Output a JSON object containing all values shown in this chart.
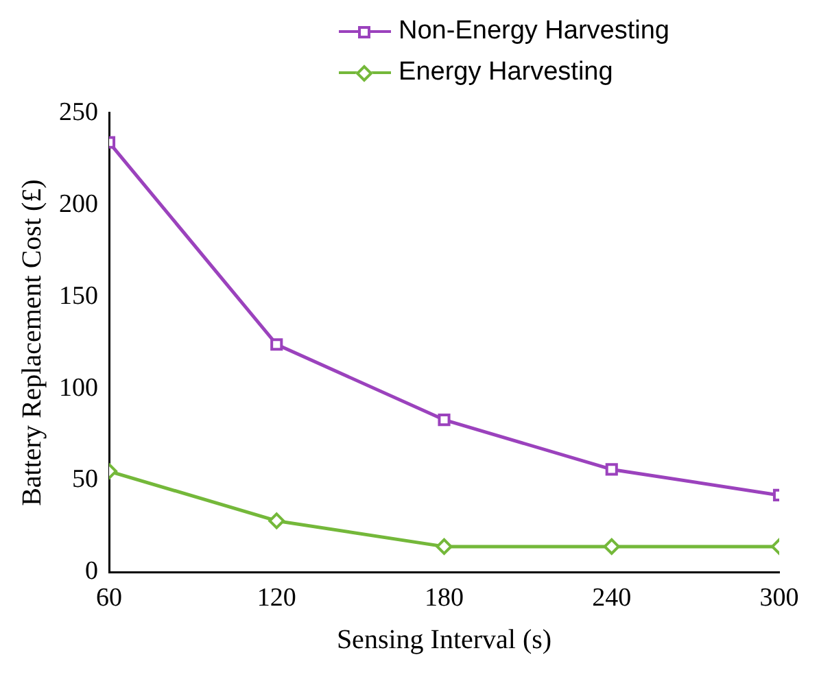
{
  "chart_data": {
    "type": "line",
    "xlabel": "Sensing Interval (s)",
    "ylabel": "Battery Replacement Cost (£)",
    "x": [
      60,
      120,
      180,
      240,
      300
    ],
    "xlim": [
      60,
      300
    ],
    "xticks": [
      60,
      120,
      180,
      240,
      300
    ],
    "ylim": [
      0,
      250
    ],
    "yticks": [
      0,
      50,
      100,
      150,
      200,
      250
    ],
    "grid": false,
    "legend": "top right",
    "line_style": "solid",
    "series": [
      {
        "name": "Non-Energy Harvesting",
        "color": "#9b42bd",
        "marker": "square",
        "values": [
          234,
          124,
          83,
          56,
          42
        ]
      },
      {
        "name": "Energy Harvesting",
        "color": "#74b83a",
        "marker": "diamond",
        "values": [
          55,
          28,
          14,
          14,
          14
        ]
      }
    ]
  }
}
